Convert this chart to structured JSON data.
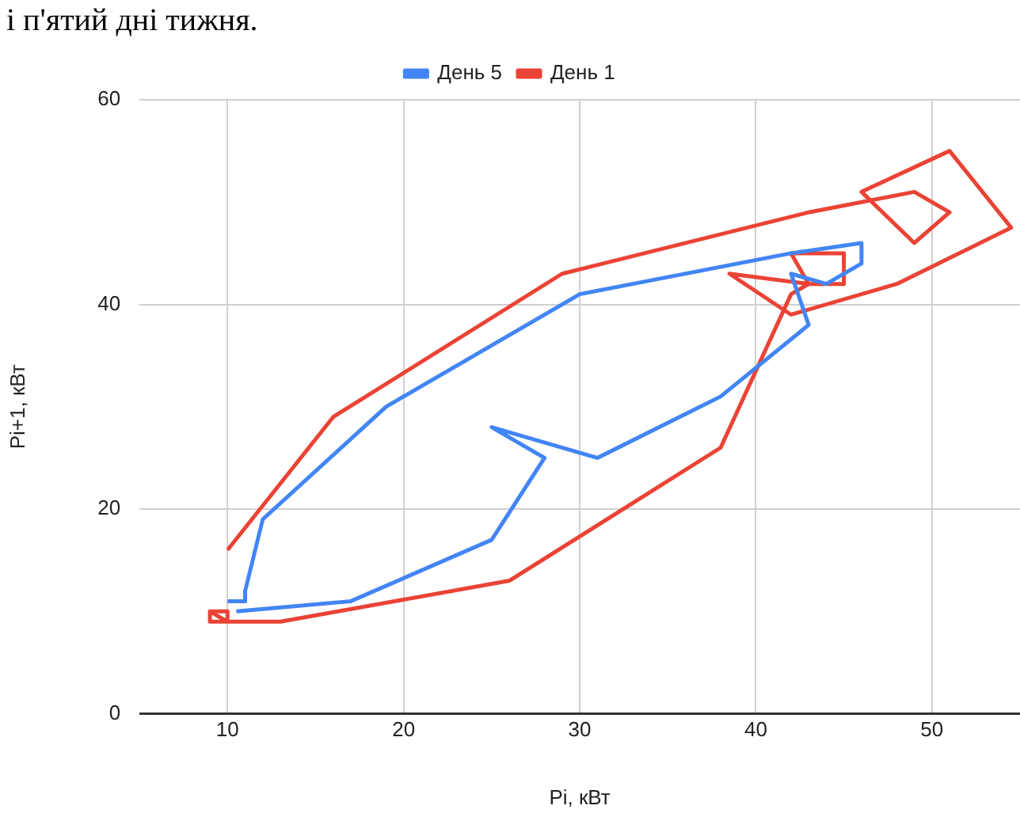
{
  "chart_data": {
    "type": "line",
    "title": "і п'ятий дні тижня.",
    "xlabel": "Pi, кВт",
    "ylabel": "Pi+1, кВт",
    "series": [
      {
        "name": "День 5",
        "color": "#4285f4",
        "x": [
          10,
          11,
          11,
          12,
          19,
          30,
          42,
          46,
          46,
          44,
          42,
          43,
          38,
          31,
          25,
          28,
          25,
          17,
          10.5
        ],
        "values": [
          11,
          11,
          12,
          19,
          30,
          41,
          45,
          46,
          44,
          42,
          43,
          38,
          31,
          25,
          28,
          25,
          17,
          11,
          10
        ]
      },
      {
        "name": "День 1",
        "color": "#ea4335",
        "x": [
          10,
          16,
          29,
          43,
          49,
          51,
          49,
          46,
          51,
          54.5,
          48,
          42,
          38.5,
          43,
          45,
          45,
          42,
          43,
          42,
          38,
          26,
          13,
          9,
          9,
          10,
          10,
          9
        ],
        "values": [
          16,
          29,
          43,
          49,
          51,
          49,
          46,
          51,
          55,
          47.5,
          42,
          39,
          43,
          42,
          42,
          45,
          45,
          42,
          41,
          26,
          13,
          9,
          9,
          10,
          10,
          9,
          10
        ]
      }
    ],
    "xlim": [
      5,
      55
    ],
    "xticks": [
      10,
      20,
      30,
      40,
      50
    ],
    "ylim": [
      0,
      60
    ],
    "yticks": [
      0,
      20,
      40,
      60
    ],
    "grid": true,
    "legend": "top",
    "marker": "none",
    "line_style": "solid"
  }
}
